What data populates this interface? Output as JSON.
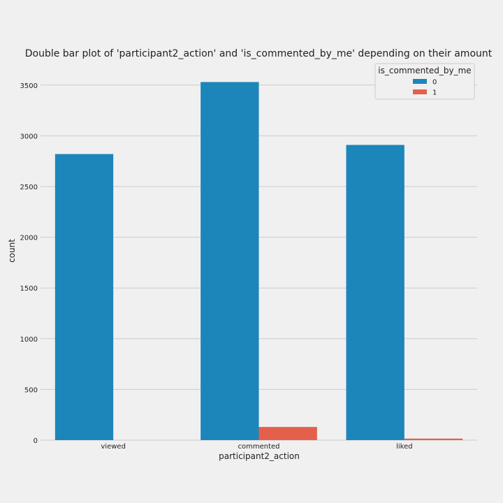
{
  "chart_data": {
    "type": "bar",
    "title": "Double bar plot of 'participant2_action' and 'is_commented_by_me' depending on their amount",
    "xlabel": "participant2_action",
    "ylabel": "count",
    "categories": [
      "viewed",
      "commented",
      "liked"
    ],
    "series": [
      {
        "name": "0",
        "values": [
          2820,
          3530,
          2910
        ],
        "color": "#1c86bb"
      },
      {
        "name": "1",
        "values": [
          0,
          130,
          15
        ],
        "color": "#e4604a"
      }
    ],
    "ylim": [
      0,
      3650
    ],
    "yticks": [
      0,
      500,
      1000,
      1500,
      2000,
      2500,
      3000,
      3500
    ],
    "grid": "horizontal",
    "legend": {
      "title": "is_commented_by_me",
      "position": "top-right"
    }
  }
}
